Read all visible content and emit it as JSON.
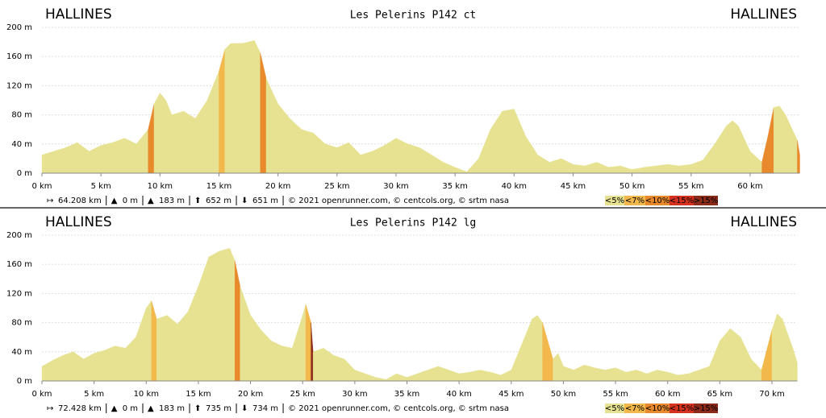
{
  "chart_data": [
    {
      "type": "area",
      "title": "Les Pelerins P142 ct",
      "start_label": "HALLINES",
      "end_label": "HALLINES",
      "color": "#e6e291",
      "x": [
        0,
        1,
        2,
        3,
        4,
        5,
        6,
        7,
        8,
        9,
        9.5,
        10,
        10.5,
        11,
        12,
        13,
        14,
        15,
        15.5,
        16,
        17,
        18,
        18.5,
        19,
        20,
        21,
        22,
        23,
        24,
        25,
        26,
        27,
        28,
        29,
        30,
        31,
        32,
        33,
        34,
        35,
        36,
        37,
        38,
        39,
        40,
        41,
        41.5,
        42,
        43,
        44,
        45,
        46,
        47,
        48,
        49,
        50,
        51,
        52,
        53,
        54,
        55,
        56,
        57,
        58,
        58.5,
        59,
        60,
        61,
        61.5,
        62,
        62.5,
        63,
        64,
        64.208
      ],
      "values": [
        25,
        30,
        35,
        42,
        30,
        38,
        42,
        48,
        40,
        60,
        95,
        110,
        100,
        80,
        85,
        75,
        100,
        140,
        170,
        178,
        178,
        182,
        165,
        130,
        95,
        75,
        60,
        55,
        40,
        35,
        42,
        25,
        30,
        38,
        48,
        40,
        35,
        25,
        15,
        8,
        2,
        20,
        60,
        85,
        88,
        50,
        38,
        25,
        15,
        20,
        12,
        10,
        15,
        8,
        10,
        5,
        8,
        10,
        12,
        10,
        12,
        18,
        40,
        65,
        72,
        65,
        30,
        15,
        50,
        90,
        92,
        80,
        45,
        25
      ],
      "xlim": [
        0,
        64.208
      ],
      "ylim": [
        0,
        200
      ],
      "xticks": [
        {
          "value": 0,
          "label": "0 km"
        },
        {
          "value": 5,
          "label": "5 km"
        },
        {
          "value": 10,
          "label": "10 km"
        },
        {
          "value": 15,
          "label": "15 km"
        },
        {
          "value": 20,
          "label": "20 km"
        },
        {
          "value": 25,
          "label": "25 km"
        },
        {
          "value": 30,
          "label": "30 km"
        },
        {
          "value": 35,
          "label": "35 km"
        },
        {
          "value": 40,
          "label": "40 km"
        },
        {
          "value": 45,
          "label": "45 km"
        },
        {
          "value": 50,
          "label": "50 km"
        },
        {
          "value": 55,
          "label": "55 km"
        },
        {
          "value": 60,
          "label": "60 km"
        }
      ],
      "yticks": [
        {
          "value": 0,
          "label": "0 m"
        },
        {
          "value": 40,
          "label": "40 m"
        },
        {
          "value": 80,
          "label": "80 m"
        },
        {
          "value": 120,
          "label": "120 m"
        },
        {
          "value": 160,
          "label": "160 m"
        },
        {
          "value": 200,
          "label": "200 m"
        }
      ],
      "grid": true,
      "stats": [
        "64.208 km",
        "0 m",
        "183 m",
        "652 m",
        "651 m"
      ],
      "credits": "© 2021 openrunner.com, © centcols.org, © srtm nasa",
      "legend": [
        {
          "value": 5,
          "label": "<5%",
          "color": "#e6e291"
        },
        {
          "value": 7,
          "label": "<7%",
          "color": "#f2b84b"
        },
        {
          "value": 10,
          "label": "<10%",
          "color": "#e8892c"
        },
        {
          "value": 15,
          "label": "<15%",
          "color": "#d4321f"
        },
        {
          "value": 15,
          "label": ">15%",
          "color": "#8c2b1a"
        }
      ]
    },
    {
      "type": "area",
      "title": "Les Pelerins P142 lg",
      "start_label": "HALLINES",
      "end_label": "HALLINES",
      "color": "#e6e291",
      "x": [
        0,
        1,
        2,
        3,
        4,
        5,
        6,
        7,
        8,
        9,
        10,
        10.5,
        11,
        12,
        13,
        14,
        15,
        16,
        17,
        18,
        18.5,
        19,
        20,
        21,
        22,
        23,
        24,
        25,
        25.3,
        25.8,
        26,
        27,
        28,
        29,
        30,
        31,
        32,
        33,
        34,
        35,
        36,
        37,
        38,
        39,
        40,
        41,
        42,
        43,
        44,
        45,
        46,
        47,
        47.5,
        48,
        49,
        49.5,
        50,
        51,
        52,
        53,
        54,
        55,
        56,
        57,
        58,
        59,
        60,
        61,
        62,
        63,
        64,
        65,
        66,
        67,
        68,
        69,
        70,
        70.5,
        71,
        72,
        72.428
      ],
      "values": [
        20,
        28,
        35,
        40,
        30,
        38,
        42,
        48,
        45,
        60,
        100,
        110,
        85,
        90,
        78,
        95,
        130,
        170,
        178,
        182,
        165,
        130,
        90,
        70,
        55,
        48,
        45,
        90,
        105,
        80,
        40,
        45,
        35,
        30,
        15,
        10,
        5,
        2,
        10,
        5,
        10,
        15,
        20,
        15,
        10,
        12,
        15,
        12,
        8,
        15,
        50,
        85,
        90,
        80,
        30,
        38,
        20,
        15,
        22,
        18,
        15,
        18,
        12,
        15,
        10,
        15,
        12,
        8,
        10,
        15,
        20,
        55,
        72,
        60,
        30,
        15,
        70,
        92,
        85,
        45,
        25
      ],
      "xlim": [
        0,
        72.428
      ],
      "ylim": [
        0,
        200
      ],
      "xticks": [
        {
          "value": 0,
          "label": "0 km"
        },
        {
          "value": 5,
          "label": "5 km"
        },
        {
          "value": 10,
          "label": "10 km"
        },
        {
          "value": 15,
          "label": "15 km"
        },
        {
          "value": 20,
          "label": "20 km"
        },
        {
          "value": 25,
          "label": "25 km"
        },
        {
          "value": 30,
          "label": "30 km"
        },
        {
          "value": 35,
          "label": "35 km"
        },
        {
          "value": 40,
          "label": "40 km"
        },
        {
          "value": 45,
          "label": "45 km"
        },
        {
          "value": 50,
          "label": "50 km"
        },
        {
          "value": 55,
          "label": "55 km"
        },
        {
          "value": 60,
          "label": "60 km"
        },
        {
          "value": 65,
          "label": "65 km"
        },
        {
          "value": 70,
          "label": "70 km"
        }
      ],
      "yticks": [
        {
          "value": 0,
          "label": "0 m"
        },
        {
          "value": 40,
          "label": "40 m"
        },
        {
          "value": 80,
          "label": "80 m"
        },
        {
          "value": 120,
          "label": "120 m"
        },
        {
          "value": 160,
          "label": "160 m"
        },
        {
          "value": 200,
          "label": "200 m"
        }
      ],
      "grid": true,
      "stats": [
        "72.428 km",
        "0 m",
        "183 m",
        "735 m",
        "734 m"
      ],
      "credits": "© 2021 openrunner.com, © centcols.org, © srtm nasa",
      "legend": [
        {
          "value": 5,
          "label": "<5%",
          "color": "#e6e291"
        },
        {
          "value": 7,
          "label": "<7%",
          "color": "#f2b84b"
        },
        {
          "value": 10,
          "label": "<10%",
          "color": "#e8892c"
        },
        {
          "value": 15,
          "label": "<15%",
          "color": "#d4321f"
        },
        {
          "value": 15,
          "label": ">15%",
          "color": "#8c2b1a"
        }
      ]
    }
  ]
}
